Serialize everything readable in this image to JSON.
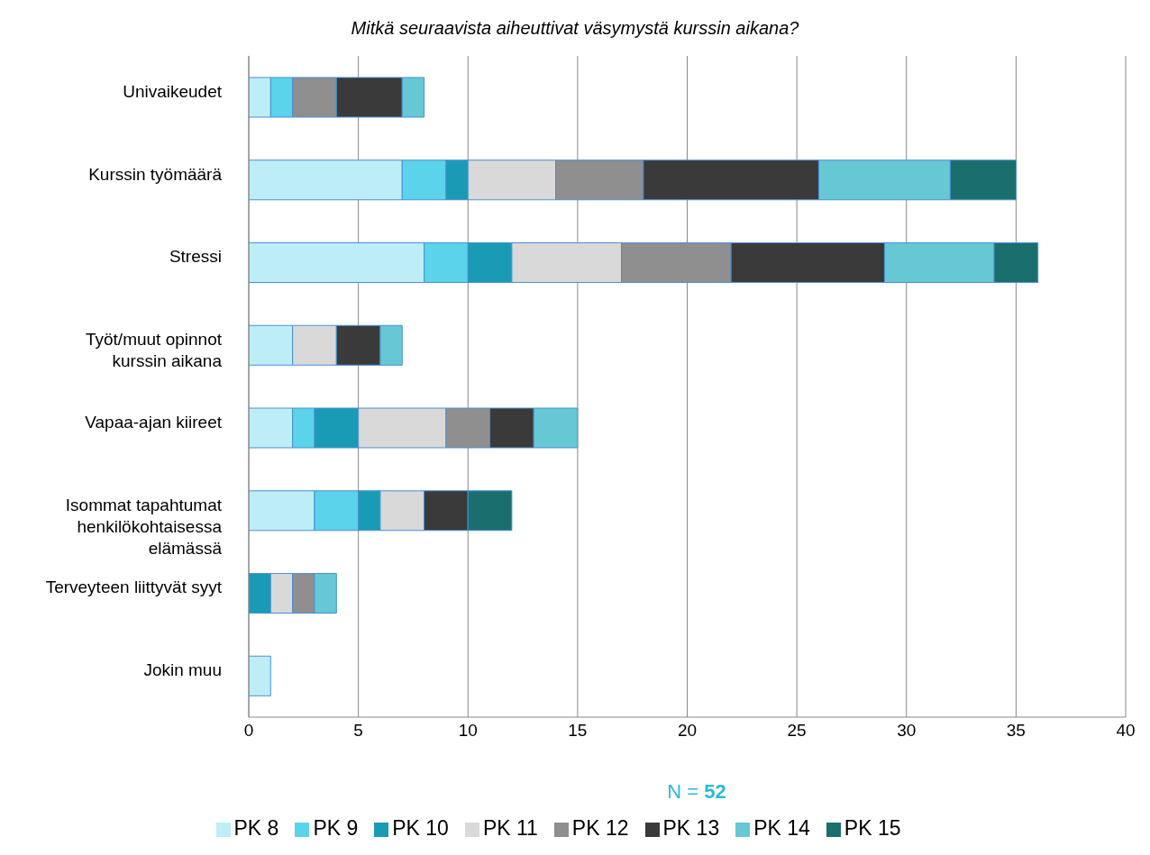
{
  "chart_data": {
    "type": "bar",
    "orientation": "horizontal",
    "stacked": true,
    "title": "Mitkä seuraavista aiheuttivat väsymystä kurssin aikana?",
    "categories": [
      "Univaikeudet",
      "Kurssin työmäärä",
      "Stressi",
      "Työt/muut opinnot kurssin aikana",
      "Vapaa-ajan kiireet",
      "Isommat tapahtumat henkilökohtaisessa elämässä",
      "Terveyteen liittyvät syyt",
      "Jokin muu"
    ],
    "series": [
      {
        "name": "PK 8",
        "color": "#bdeef7",
        "values": [
          1,
          7,
          8,
          2,
          2,
          3,
          0,
          1
        ]
      },
      {
        "name": "PK 9",
        "color": "#5bd3ea",
        "values": [
          1,
          2,
          2,
          0,
          1,
          2,
          0,
          0
        ]
      },
      {
        "name": "PK 10",
        "color": "#1a9bb5",
        "values": [
          0,
          1,
          2,
          0,
          2,
          1,
          1,
          0
        ]
      },
      {
        "name": "PK 11",
        "color": "#d9d9d9",
        "values": [
          0,
          4,
          5,
          2,
          4,
          2,
          1,
          0
        ]
      },
      {
        "name": "PK 12",
        "color": "#8f8f8f",
        "values": [
          2,
          4,
          5,
          0,
          2,
          0,
          1,
          0
        ]
      },
      {
        "name": "PK 13",
        "color": "#3a3a3a",
        "values": [
          3,
          8,
          7,
          2,
          2,
          2,
          0,
          0
        ]
      },
      {
        "name": "PK 14",
        "color": "#66c8d4",
        "values": [
          1,
          6,
          5,
          1,
          2,
          0,
          1,
          0
        ]
      },
      {
        "name": "PK 15",
        "color": "#1a6e6e",
        "values": [
          0,
          3,
          2,
          0,
          0,
          2,
          0,
          0
        ]
      }
    ],
    "xlim": [
      0,
      40
    ],
    "xticks": [
      0,
      5,
      10,
      15,
      20,
      25,
      30,
      35,
      40
    ],
    "grid": "x",
    "legend": "bottom",
    "annotations": [
      "N = 52"
    ]
  }
}
